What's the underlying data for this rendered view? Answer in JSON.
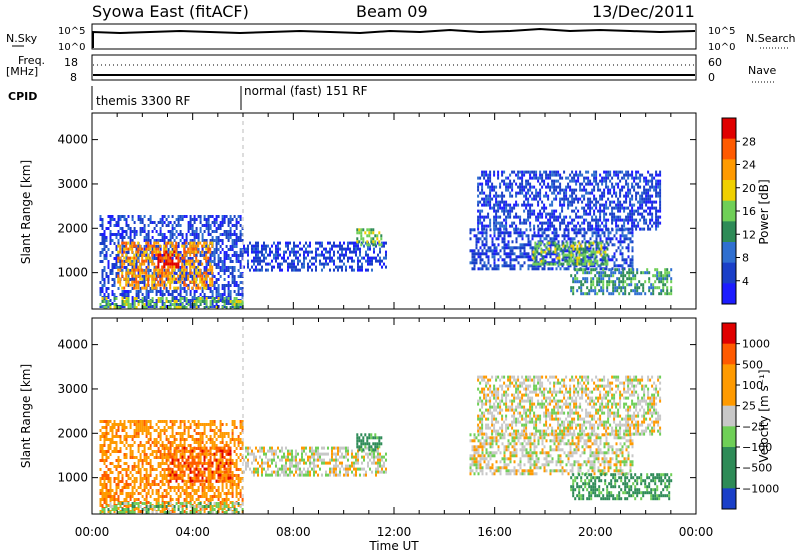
{
  "header": {
    "title": "Syowa East (fitACF)",
    "beam": "Beam 09",
    "date": "13/Dec/2011"
  },
  "top_panels": {
    "nsky_label": "N.Sky",
    "nsky_ticks": [
      "10^5",
      "10^0"
    ],
    "nsearch_label": "N.Search",
    "nsearch_ticks": [
      "10^5",
      "10^0"
    ],
    "freq_label": "Freq.",
    "freq_unit": "[MHz]",
    "freq_ticks": [
      "18",
      "8"
    ],
    "nave_label": "Nave",
    "nave_ticks": [
      "60",
      "0"
    ],
    "cpid_label": "CPID",
    "cpid_segments": [
      {
        "label": "themis 3300 RF",
        "start_h": 0,
        "end_h": 6
      },
      {
        "label": "normal (fast) 151 RF",
        "start_h": 6,
        "end_h": 24
      }
    ]
  },
  "chart_data": [
    {
      "type": "heatmap",
      "quantity": "power",
      "ylabel": "Slant Range [km]",
      "yticks": [
        1000,
        2000,
        3000,
        4000
      ],
      "ylim": [
        180,
        4600
      ],
      "xlim": [
        0,
        24
      ],
      "colorbar": {
        "label": "Power [dB]",
        "ticks": [
          "28",
          "24",
          "20",
          "16",
          "12",
          "8",
          "4"
        ],
        "colors": [
          "#1c1cff",
          "#1a3fc8",
          "#2f6fd0",
          "#2e8b57",
          "#6fcf57",
          "#f0d000",
          "#ff9a00",
          "#ff5a00",
          "#e00000"
        ]
      },
      "blocks": [
        {
          "x0": 0.3,
          "x1": 6.0,
          "y0": 250,
          "y1": 2300,
          "c": 1
        },
        {
          "x0": 1.0,
          "x1": 4.8,
          "y0": 650,
          "y1": 1700,
          "c": 6
        },
        {
          "x0": 2.6,
          "x1": 3.4,
          "y0": 1100,
          "y1": 1500,
          "c": 8
        },
        {
          "x0": 6.0,
          "x1": 11.7,
          "y0": 1050,
          "y1": 1700,
          "c": 1
        },
        {
          "x0": 10.5,
          "x1": 11.5,
          "y0": 1600,
          "y1": 2000,
          "c": 4
        },
        {
          "x0": 15.0,
          "x1": 21.5,
          "y0": 1100,
          "y1": 2000,
          "c": 1
        },
        {
          "x0": 17.5,
          "x1": 20.5,
          "y0": 1200,
          "y1": 1700,
          "c": 4
        },
        {
          "x0": 15.3,
          "x1": 22.6,
          "y0": 2000,
          "y1": 3300,
          "c": 1
        },
        {
          "x0": 19.0,
          "x1": 23.0,
          "y0": 500,
          "y1": 1100,
          "c": 3
        },
        {
          "x0": 0.3,
          "x1": 6.0,
          "y0": 200,
          "y1": 450,
          "c": 4
        }
      ]
    },
    {
      "type": "heatmap",
      "quantity": "velocity",
      "ylabel": "Slant Range [km]",
      "yticks": [
        1000,
        2000,
        3000,
        4000
      ],
      "ylim": [
        180,
        4600
      ],
      "xlim": [
        0,
        24
      ],
      "xticks": [
        "00:00",
        "04:00",
        "08:00",
        "12:00",
        "16:00",
        "20:00",
        "00:00"
      ],
      "xlabel": "Time UT",
      "colorbar": {
        "label": "Velocity [m s⁻¹]",
        "ticks": [
          "1000",
          "500",
          "100",
          "25",
          "−25",
          "−100",
          "−500",
          "−1000"
        ],
        "colors": [
          "#1a3fc8",
          "#2e8b57",
          "#2e8b57",
          "#6fcf57",
          "#c8c8c8",
          "#ff9a00",
          "#ff9a00",
          "#ff5a00",
          "#e00000"
        ]
      },
      "blocks": [
        {
          "x0": 0.3,
          "x1": 6.0,
          "y0": 250,
          "y1": 2300,
          "c": 6
        },
        {
          "x0": 3.0,
          "x1": 5.5,
          "y0": 900,
          "y1": 1700,
          "c": 7
        },
        {
          "x0": 6.0,
          "x1": 11.7,
          "y0": 1050,
          "y1": 1700,
          "c": 4
        },
        {
          "x0": 10.5,
          "x1": 11.5,
          "y0": 1600,
          "y1": 2000,
          "c": 2
        },
        {
          "x0": 15.0,
          "x1": 21.5,
          "y0": 1100,
          "y1": 2000,
          "c": 4
        },
        {
          "x0": 15.3,
          "x1": 22.6,
          "y0": 2000,
          "y1": 3300,
          "c": 4
        },
        {
          "x0": 19.0,
          "x1": 23.0,
          "y0": 500,
          "y1": 1100,
          "c": 2
        },
        {
          "x0": 0.3,
          "x1": 6.0,
          "y0": 200,
          "y1": 450,
          "c": 3
        }
      ]
    }
  ]
}
